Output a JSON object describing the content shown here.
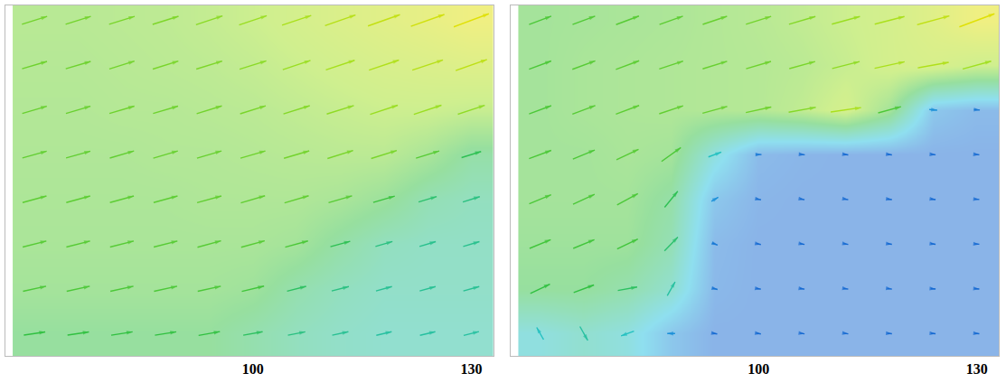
{
  "chart_data": [
    {
      "type": "quiver",
      "x": [
        70,
        76,
        82,
        88,
        94,
        100,
        106,
        112,
        118,
        124,
        130
      ],
      "y": [
        3,
        9,
        15,
        21,
        27,
        33,
        39,
        45
      ],
      "speed": [
        [
          0.55,
          0.55,
          0.55,
          0.55,
          0.55,
          0.5,
          0.45,
          0.42,
          0.4,
          0.4,
          0.4
        ],
        [
          0.6,
          0.6,
          0.6,
          0.6,
          0.6,
          0.58,
          0.5,
          0.45,
          0.42,
          0.42,
          0.42
        ],
        [
          0.62,
          0.62,
          0.62,
          0.62,
          0.62,
          0.62,
          0.6,
          0.52,
          0.45,
          0.43,
          0.43
        ],
        [
          0.63,
          0.63,
          0.63,
          0.63,
          0.64,
          0.64,
          0.64,
          0.62,
          0.57,
          0.48,
          0.45
        ],
        [
          0.64,
          0.64,
          0.64,
          0.65,
          0.65,
          0.66,
          0.67,
          0.68,
          0.68,
          0.62,
          0.52
        ],
        [
          0.65,
          0.65,
          0.66,
          0.66,
          0.67,
          0.68,
          0.7,
          0.72,
          0.74,
          0.74,
          0.72
        ],
        [
          0.66,
          0.66,
          0.67,
          0.68,
          0.69,
          0.71,
          0.74,
          0.77,
          0.8,
          0.82,
          0.84
        ],
        [
          0.67,
          0.67,
          0.68,
          0.69,
          0.71,
          0.74,
          0.78,
          0.82,
          0.86,
          0.9,
          0.95
        ]
      ],
      "angle": [
        [
          8,
          8,
          9,
          9,
          10,
          10,
          11,
          12,
          13,
          13,
          14
        ],
        [
          12,
          12,
          12,
          12,
          12,
          13,
          14,
          14,
          15,
          15,
          15
        ],
        [
          14,
          14,
          14,
          14,
          15,
          15,
          15,
          15,
          16,
          16,
          16
        ],
        [
          15,
          15,
          15,
          15,
          15,
          16,
          16,
          16,
          16,
          16,
          17
        ],
        [
          15,
          15,
          16,
          16,
          16,
          16,
          16,
          17,
          17,
          17,
          17
        ],
        [
          16,
          16,
          16,
          16,
          17,
          17,
          17,
          17,
          18,
          18,
          18
        ],
        [
          16,
          16,
          17,
          17,
          17,
          17,
          18,
          18,
          18,
          18,
          19
        ],
        [
          17,
          17,
          17,
          17,
          18,
          18,
          18,
          19,
          19,
          19,
          20
        ]
      ],
      "crange": [
        0,
        1
      ],
      "xlim": [
        66,
        133
      ],
      "ylim": [
        0,
        47
      ],
      "xticks": [
        100,
        130
      ],
      "tick_labels": "x"
    },
    {
      "type": "quiver",
      "x": [
        70,
        76,
        82,
        88,
        94,
        100,
        106,
        112,
        118,
        124,
        130
      ],
      "y": [
        3,
        9,
        15,
        21,
        27,
        33,
        39,
        45
      ],
      "speed": [
        [
          0.35,
          0.4,
          0.35,
          0.2,
          0.12,
          0.12,
          0.12,
          0.12,
          0.12,
          0.12,
          0.12
        ],
        [
          0.55,
          0.55,
          0.5,
          0.4,
          0.14,
          0.12,
          0.12,
          0.12,
          0.12,
          0.12,
          0.12
        ],
        [
          0.58,
          0.58,
          0.58,
          0.48,
          0.15,
          0.12,
          0.12,
          0.12,
          0.12,
          0.12,
          0.12
        ],
        [
          0.6,
          0.6,
          0.6,
          0.52,
          0.2,
          0.13,
          0.12,
          0.12,
          0.12,
          0.12,
          0.12
        ],
        [
          0.6,
          0.6,
          0.62,
          0.6,
          0.35,
          0.15,
          0.13,
          0.12,
          0.12,
          0.12,
          0.12
        ],
        [
          0.6,
          0.62,
          0.63,
          0.64,
          0.65,
          0.66,
          0.7,
          0.78,
          0.6,
          0.2,
          0.15
        ],
        [
          0.6,
          0.62,
          0.63,
          0.64,
          0.65,
          0.66,
          0.68,
          0.72,
          0.78,
          0.8,
          0.75
        ],
        [
          0.6,
          0.61,
          0.62,
          0.63,
          0.65,
          0.67,
          0.7,
          0.74,
          0.78,
          0.85,
          0.95
        ]
      ],
      "angle": [
        [
          120,
          -60,
          200,
          180,
          -10,
          -10,
          -8,
          -8,
          -5,
          -5,
          -5
        ],
        [
          25,
          20,
          10,
          60,
          -15,
          -10,
          -10,
          -8,
          -8,
          -5,
          -5
        ],
        [
          22,
          22,
          25,
          45,
          -20,
          -12,
          -10,
          -10,
          -8,
          -8,
          -5
        ],
        [
          22,
          24,
          28,
          50,
          30,
          -10,
          -10,
          -10,
          -8,
          -8,
          -5
        ],
        [
          20,
          22,
          25,
          35,
          20,
          0,
          -5,
          -8,
          -8,
          -5,
          -5
        ],
        [
          20,
          20,
          20,
          18,
          15,
          12,
          10,
          8,
          15,
          -5,
          -5
        ],
        [
          20,
          20,
          20,
          18,
          17,
          16,
          15,
          14,
          12,
          10,
          15
        ],
        [
          20,
          20,
          20,
          19,
          18,
          17,
          16,
          15,
          14,
          15,
          20
        ]
      ],
      "crange": [
        0,
        1
      ],
      "xlim": [
        66,
        133
      ],
      "ylim": [
        0,
        47
      ],
      "xticks": [
        100,
        130
      ],
      "tick_labels": "x"
    }
  ]
}
